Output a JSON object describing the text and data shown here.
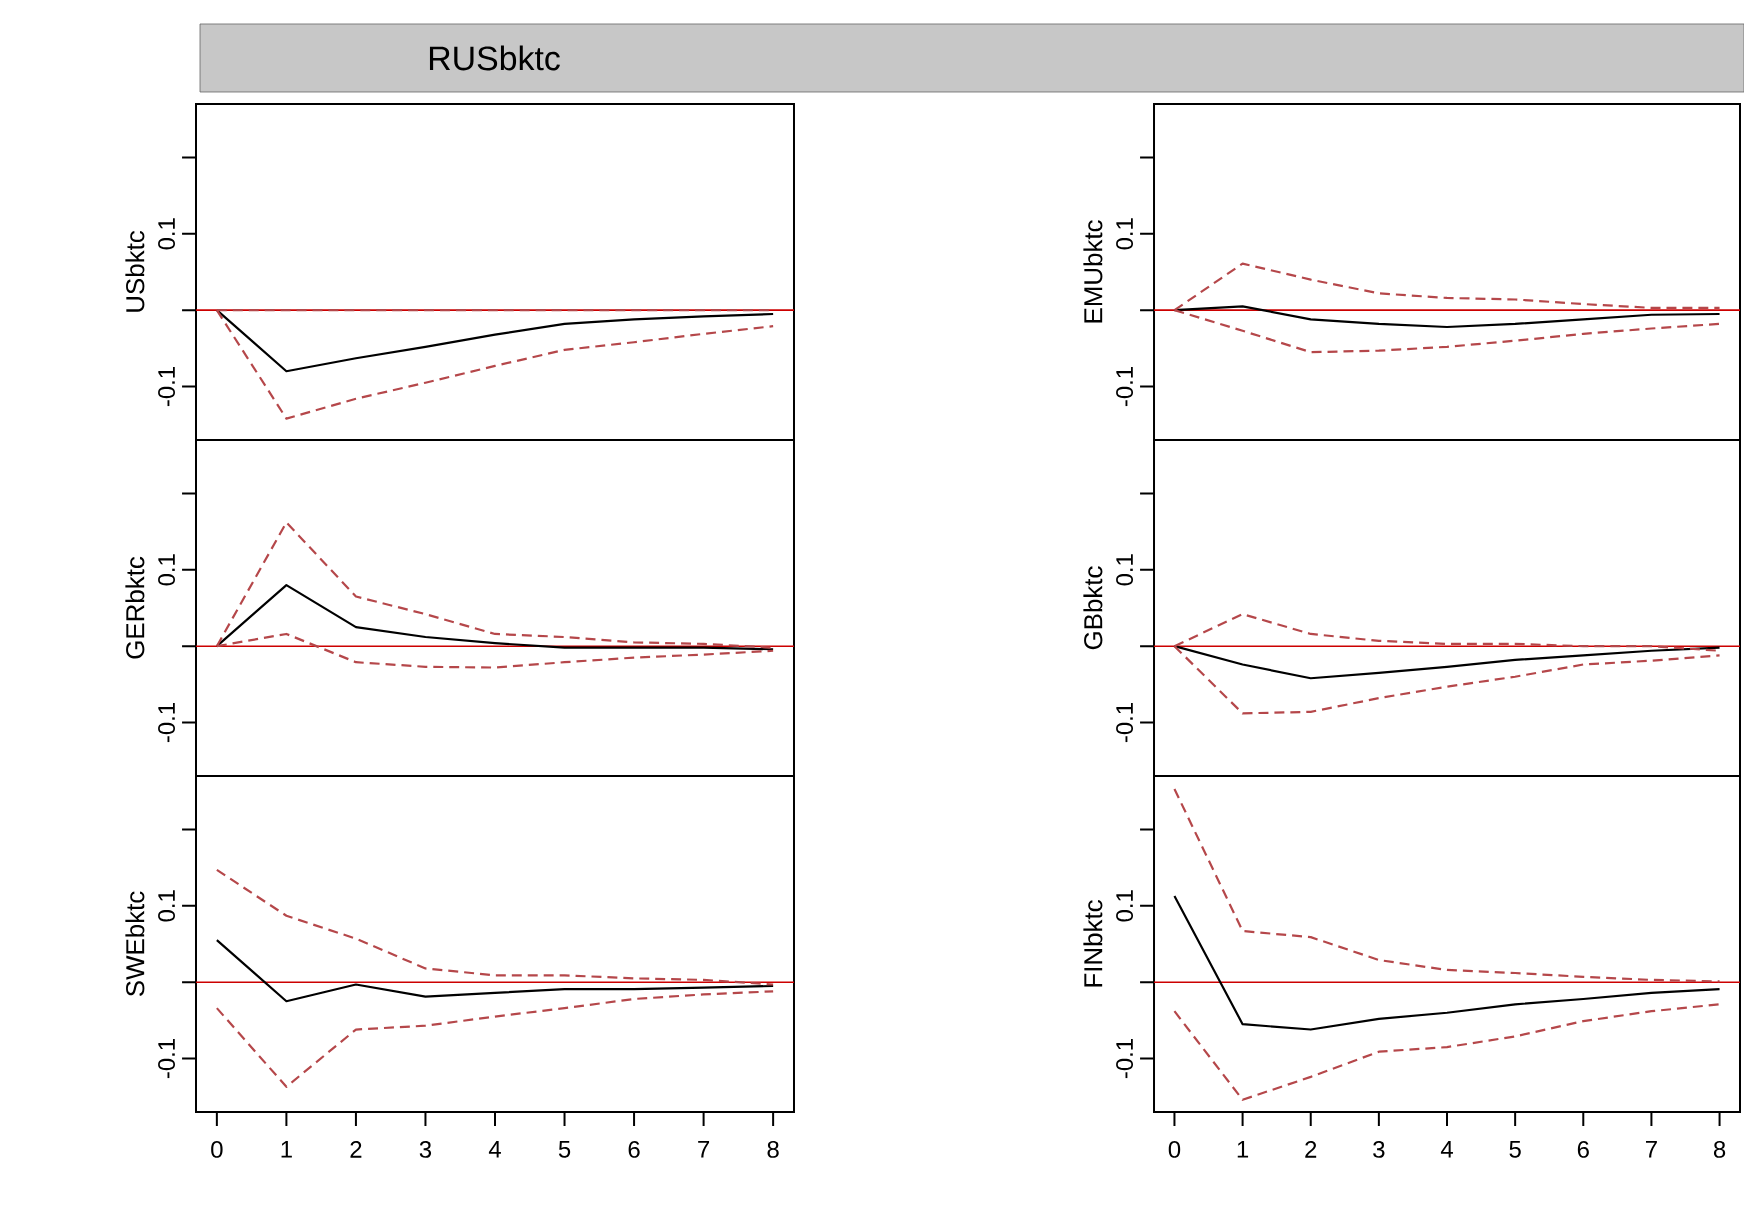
{
  "chart_data": [
    {
      "type": "line",
      "title": "RUSbktc",
      "ylabel": "USbktc",
      "x": [
        0,
        1,
        2,
        3,
        4,
        5,
        6,
        7,
        8
      ],
      "xlim": [
        -0.3,
        8.3
      ],
      "ylim": [
        -0.17,
        0.27
      ],
      "yticks": [
        {
          "value": -0.1,
          "label": "-0.1"
        },
        {
          "value": 0,
          "label": null
        },
        {
          "value": 0.1,
          "label": "0.1"
        },
        {
          "value": 0.2,
          "label": null
        }
      ],
      "tick_labels": "y",
      "ref_lines": [
        {
          "axis": "y",
          "value": 0,
          "color": "#cc0000"
        }
      ],
      "series": [
        {
          "color": "#000000",
          "line_style": "solid",
          "values": [
            0,
            -0.08,
            -0.063,
            -0.048,
            -0.032,
            -0.018,
            -0.012,
            -0.008,
            -0.005
          ]
        },
        {
          "color": "#b5474a",
          "line_style": "dashed",
          "values": [
            0,
            0,
            0,
            0,
            0,
            0,
            0,
            0,
            0
          ]
        },
        {
          "color": "#b5474a",
          "line_style": "dashed",
          "values": [
            0,
            -0.142,
            -0.116,
            -0.095,
            -0.073,
            -0.052,
            -0.042,
            -0.031,
            -0.021
          ]
        }
      ]
    },
    {
      "type": "line",
      "ylabel": "EMUbktc",
      "x": [
        0,
        1,
        2,
        3,
        4,
        5,
        6,
        7,
        8
      ],
      "xlim": [
        -0.3,
        8.3
      ],
      "ylim": [
        -0.17,
        0.27
      ],
      "yticks": [
        {
          "value": -0.1,
          "label": "-0.1"
        },
        {
          "value": 0,
          "label": null
        },
        {
          "value": 0.1,
          "label": "0.1"
        },
        {
          "value": 0.2,
          "label": null
        }
      ],
      "tick_labels": "y",
      "ref_lines": [
        {
          "axis": "y",
          "value": 0,
          "color": "#cc0000"
        }
      ],
      "series": [
        {
          "color": "#000000",
          "line_style": "solid",
          "values": [
            0,
            0.005,
            -0.012,
            -0.018,
            -0.022,
            -0.018,
            -0.012,
            -0.006,
            -0.005
          ]
        },
        {
          "color": "#b5474a",
          "line_style": "dashed",
          "values": [
            0,
            0.061,
            0.04,
            0.022,
            0.016,
            0.014,
            0.008,
            0.003,
            0.003
          ]
        },
        {
          "color": "#b5474a",
          "line_style": "dashed",
          "values": [
            0,
            -0.027,
            -0.055,
            -0.053,
            -0.048,
            -0.04,
            -0.031,
            -0.024,
            -0.018
          ]
        }
      ]
    },
    {
      "type": "line",
      "ylabel": "GERbktc",
      "x": [
        0,
        1,
        2,
        3,
        4,
        5,
        6,
        7,
        8
      ],
      "xlim": [
        -0.3,
        8.3
      ],
      "ylim": [
        -0.17,
        0.27
      ],
      "yticks": [
        {
          "value": -0.1,
          "label": "-0.1"
        },
        {
          "value": 0,
          "label": null
        },
        {
          "value": 0.1,
          "label": "0.1"
        },
        {
          "value": 0.2,
          "label": null
        }
      ],
      "tick_labels": "y",
      "ref_lines": [
        {
          "axis": "y",
          "value": 0,
          "color": "#cc0000"
        }
      ],
      "series": [
        {
          "color": "#000000",
          "line_style": "solid",
          "values": [
            0,
            0.08,
            0.025,
            0.012,
            0.004,
            -0.002,
            -0.002,
            -0.002,
            -0.004
          ]
        },
        {
          "color": "#b5474a",
          "line_style": "dashed",
          "values": [
            0,
            0.162,
            0.065,
            0.042,
            0.016,
            0.012,
            0.005,
            0.003,
            -0.002
          ]
        },
        {
          "color": "#b5474a",
          "line_style": "dashed",
          "values": [
            0,
            0.016,
            -0.021,
            -0.027,
            -0.028,
            -0.021,
            -0.015,
            -0.011,
            -0.006
          ]
        }
      ]
    },
    {
      "type": "line",
      "ylabel": "GBbktc",
      "x": [
        0,
        1,
        2,
        3,
        4,
        5,
        6,
        7,
        8
      ],
      "xlim": [
        -0.3,
        8.3
      ],
      "ylim": [
        -0.17,
        0.27
      ],
      "yticks": [
        {
          "value": -0.1,
          "label": "-0.1"
        },
        {
          "value": 0,
          "label": null
        },
        {
          "value": 0.1,
          "label": "0.1"
        },
        {
          "value": 0.2,
          "label": null
        }
      ],
      "tick_labels": "y",
      "ref_lines": [
        {
          "axis": "y",
          "value": 0,
          "color": "#cc0000"
        }
      ],
      "series": [
        {
          "color": "#000000",
          "line_style": "solid",
          "values": [
            0,
            -0.024,
            -0.042,
            -0.035,
            -0.027,
            -0.018,
            -0.012,
            -0.006,
            -0.002
          ]
        },
        {
          "color": "#b5474a",
          "line_style": "dashed",
          "values": [
            0,
            0.042,
            0.016,
            0.007,
            0.003,
            0.003,
            0,
            0,
            -0.006
          ]
        },
        {
          "color": "#b5474a",
          "line_style": "dashed",
          "values": [
            0,
            -0.088,
            -0.086,
            -0.068,
            -0.053,
            -0.04,
            -0.024,
            -0.019,
            -0.012
          ]
        }
      ]
    },
    {
      "type": "line",
      "ylabel": "SWEbktc",
      "x": [
        0,
        1,
        2,
        3,
        4,
        5,
        6,
        7,
        8
      ],
      "xlim": [
        -0.3,
        8.3
      ],
      "ylim": [
        -0.17,
        0.27
      ],
      "xticks": [
        0,
        1,
        2,
        3,
        4,
        5,
        6,
        7,
        8
      ],
      "yticks": [
        {
          "value": -0.1,
          "label": "-0.1"
        },
        {
          "value": 0,
          "label": null
        },
        {
          "value": 0.1,
          "label": "0.1"
        },
        {
          "value": 0.2,
          "label": null
        }
      ],
      "ref_lines": [
        {
          "axis": "y",
          "value": 0,
          "color": "#cc0000"
        }
      ],
      "series": [
        {
          "color": "#000000",
          "line_style": "solid",
          "values": [
            0.055,
            -0.025,
            -0.003,
            -0.019,
            -0.014,
            -0.009,
            -0.009,
            -0.007,
            -0.005
          ]
        },
        {
          "color": "#b5474a",
          "line_style": "dashed",
          "values": [
            0.147,
            0.087,
            0.057,
            0.018,
            0.009,
            0.009,
            0.005,
            0.003,
            -0.003
          ]
        },
        {
          "color": "#b5474a",
          "line_style": "dashed",
          "values": [
            -0.034,
            -0.137,
            -0.062,
            -0.057,
            -0.045,
            -0.034,
            -0.022,
            -0.016,
            -0.012
          ]
        }
      ]
    },
    {
      "type": "line",
      "ylabel": "FINbktc",
      "x": [
        0,
        1,
        2,
        3,
        4,
        5,
        6,
        7,
        8
      ],
      "xlim": [
        -0.3,
        8.3
      ],
      "ylim": [
        -0.17,
        0.27
      ],
      "xticks": [
        0,
        1,
        2,
        3,
        4,
        5,
        6,
        7,
        8
      ],
      "yticks": [
        {
          "value": -0.1,
          "label": "-0.1"
        },
        {
          "value": 0,
          "label": null
        },
        {
          "value": 0.1,
          "label": "0.1"
        },
        {
          "value": 0.2,
          "label": null
        }
      ],
      "ref_lines": [
        {
          "axis": "y",
          "value": 0,
          "color": "#cc0000"
        }
      ],
      "series": [
        {
          "color": "#000000",
          "line_style": "solid",
          "values": [
            0.113,
            -0.055,
            -0.062,
            -0.048,
            -0.04,
            -0.029,
            -0.022,
            -0.014,
            -0.009
          ]
        },
        {
          "color": "#b5474a",
          "line_style": "dashed",
          "values": [
            0.253,
            0.067,
            0.059,
            0.029,
            0.016,
            0.012,
            0.007,
            0.003,
            0.001
          ]
        },
        {
          "color": "#b5474a",
          "line_style": "dashed",
          "values": [
            -0.038,
            -0.154,
            -0.124,
            -0.091,
            -0.085,
            -0.071,
            -0.051,
            -0.038,
            -0.029
          ]
        }
      ]
    }
  ]
}
